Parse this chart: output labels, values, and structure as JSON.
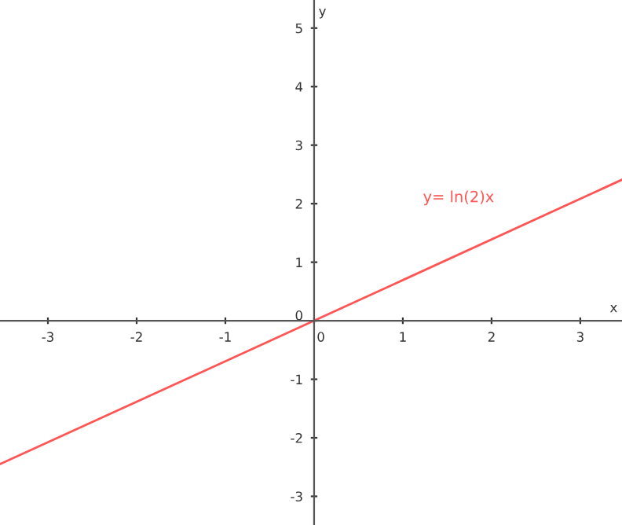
{
  "chart_data": {
    "type": "line",
    "xlabel": "x",
    "ylabel": "y",
    "series": [
      {
        "name": "y= ln(2)x",
        "color": "#ff5555",
        "x": [
          -3.54,
          0,
          3.47
        ],
        "values": [
          -2.45,
          0,
          2.41
        ]
      }
    ],
    "xlim": [
      -3.54,
      3.47
    ],
    "ylim": [
      -3.49,
      5.48
    ],
    "xticks": [
      -3,
      -2,
      -1,
      0,
      1,
      2,
      3
    ],
    "yticks": [
      -3,
      -2,
      -1,
      0,
      1,
      2,
      3,
      4,
      5
    ],
    "grid": false,
    "legend": false,
    "marker": "none",
    "line_style": "solid"
  }
}
